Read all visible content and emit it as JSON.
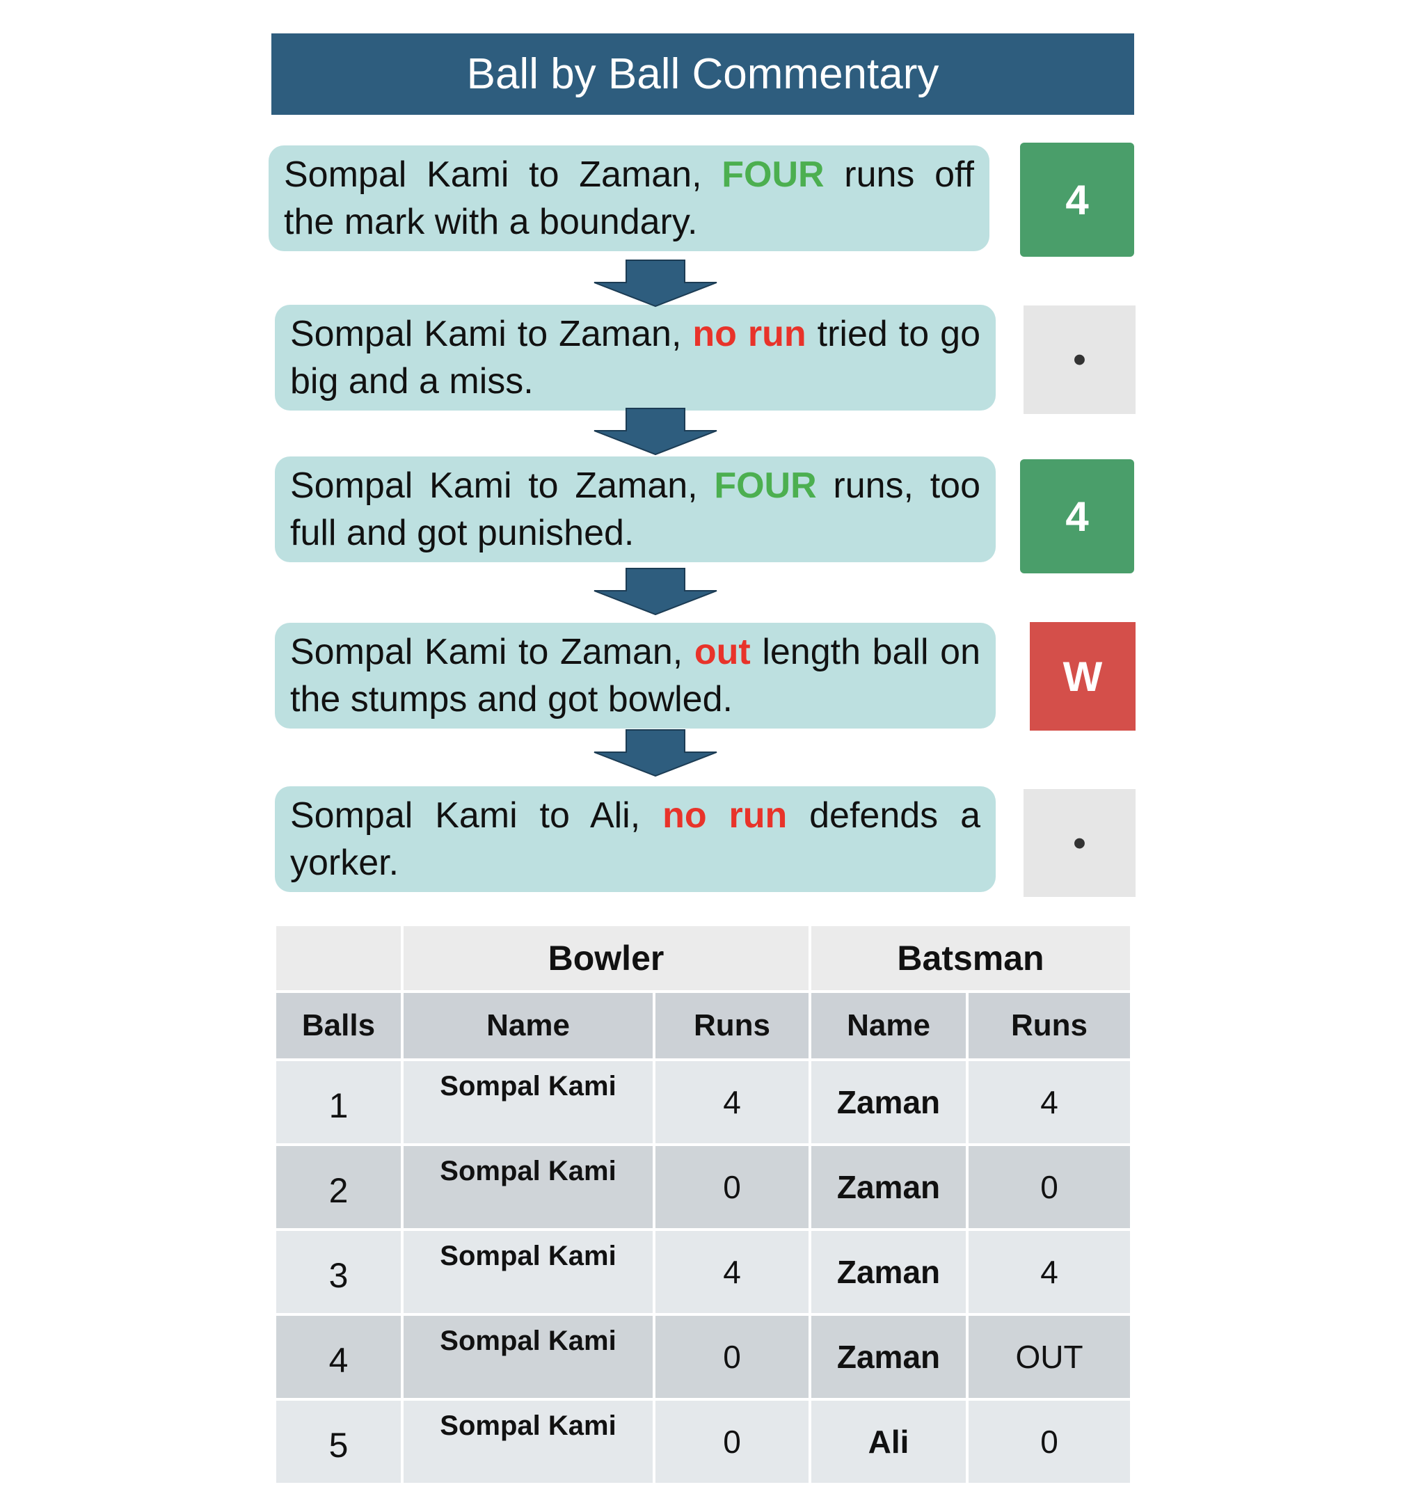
{
  "title": "Ball by Ball Commentary",
  "colors": {
    "header": "#2e5d7e",
    "box": "#bde0e0",
    "four_text": "#4caf50",
    "red_text": "#e8332a",
    "four_badge": "#4a9e6a",
    "wicket_badge": "#d44f4a",
    "dot_badge": "#e6e6e6",
    "arrow": "#2e5d7e"
  },
  "commentary": [
    {
      "before": "Sompal Kami to Zaman, ",
      "highlight": "FOUR",
      "highlight_color": "#4caf50",
      "after": " runs off the mark with a boundary.",
      "badge": "4",
      "badge_type": "four"
    },
    {
      "before": "Sompal Kami to Zaman, ",
      "highlight": "no run",
      "highlight_color": "#e8332a",
      "after": " tried to go big and a miss.",
      "badge": "•",
      "badge_type": "dot"
    },
    {
      "before": "Sompal Kami to Zaman, ",
      "highlight": "FOUR",
      "highlight_color": "#4caf50",
      "after": " runs, too full and got punished.",
      "badge": "4",
      "badge_type": "four"
    },
    {
      "before": "Sompal Kami to Zaman, ",
      "highlight": "out",
      "highlight_color": "#e8332a",
      "after": " length ball on the stumps and got bowled.",
      "badge": "W",
      "badge_type": "wicket"
    },
    {
      "before": "Sompal Kami to Ali, ",
      "highlight": "no run",
      "highlight_color": "#e8332a",
      "after": " defends a yorker.",
      "badge": "•",
      "badge_type": "dot"
    }
  ],
  "table": {
    "group_headers": [
      "",
      "Bowler",
      "Batsman"
    ],
    "columns": [
      "Balls",
      "Name",
      "Runs",
      "Name",
      "Runs"
    ],
    "rows": [
      [
        "1",
        "Sompal Kami",
        "4",
        "Zaman",
        "4"
      ],
      [
        "2",
        "Sompal Kami",
        "0",
        "Zaman",
        "0"
      ],
      [
        "3",
        "Sompal Kami",
        "4",
        "Zaman",
        "4"
      ],
      [
        "4",
        "Sompal Kami",
        "0",
        "Zaman",
        "OUT"
      ],
      [
        "5",
        "Sompal Kami",
        "0",
        "Ali",
        "0"
      ]
    ]
  }
}
